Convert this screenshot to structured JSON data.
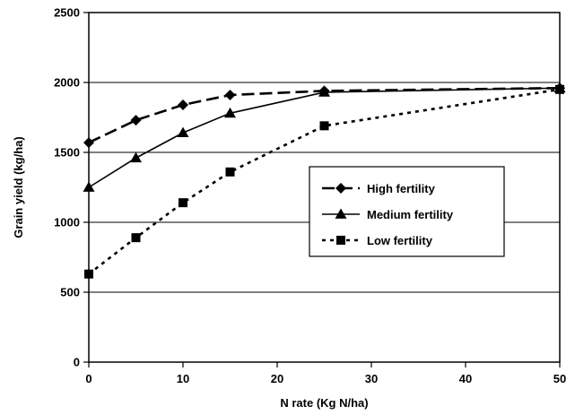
{
  "chart_data": {
    "type": "line",
    "title": "",
    "xlabel": "N rate (Kg N/ha)",
    "ylabel": "Grain yield (kg/ha)",
    "xlim": [
      0,
      50
    ],
    "ylim": [
      0,
      2500
    ],
    "x_ticks": [
      0,
      10,
      20,
      30,
      40,
      50
    ],
    "y_ticks": [
      0,
      500,
      1000,
      1500,
      2000,
      2500
    ],
    "grid": "horizontal",
    "legend_position": "center-right",
    "series": [
      {
        "name": "High fertility",
        "marker": "diamond",
        "line_style": "dashed",
        "x": [
          0,
          5,
          10,
          15,
          25,
          50
        ],
        "y": [
          1570,
          1730,
          1840,
          1910,
          1940,
          1960
        ]
      },
      {
        "name": "Medium fertility",
        "marker": "triangle",
        "line_style": "solid",
        "x": [
          0,
          5,
          10,
          15,
          25,
          50
        ],
        "y": [
          1250,
          1460,
          1640,
          1780,
          1930,
          1960
        ]
      },
      {
        "name": "Low fertility",
        "marker": "square",
        "line_style": "dotted",
        "x": [
          0,
          5,
          10,
          15,
          25,
          50
        ],
        "y": [
          630,
          890,
          1140,
          1360,
          1690,
          1950
        ]
      }
    ]
  }
}
